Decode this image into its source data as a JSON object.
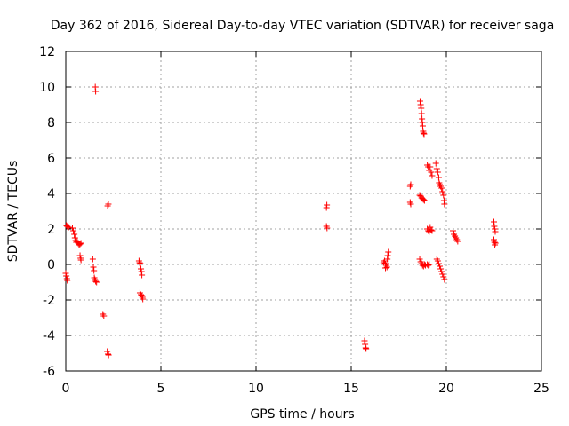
{
  "chart_data": {
    "type": "scatter",
    "title": "Day 362 of 2016, Sidereal Day-to-day VTEC variation (SDTVAR) for receiver saga",
    "xlabel": "GPS time / hours",
    "ylabel": "SDTVAR / TECUs",
    "xlim": [
      0,
      25
    ],
    "ylim": [
      -6,
      12
    ],
    "xticks": [
      0,
      5,
      10,
      15,
      20,
      25
    ],
    "yticks": [
      -6,
      -4,
      -2,
      0,
      2,
      4,
      6,
      8,
      10,
      12
    ],
    "grid": true,
    "marker": "+",
    "color": "#ff0000",
    "series": [
      {
        "name": "SDTVAR",
        "points": [
          [
            0.0,
            -0.5
          ],
          [
            0.03,
            -0.65
          ],
          [
            0.06,
            -0.8
          ],
          [
            0.08,
            -0.9
          ],
          [
            0.03,
            2.2
          ],
          [
            0.08,
            2.15
          ],
          [
            0.15,
            2.1
          ],
          [
            0.35,
            2.05
          ],
          [
            0.4,
            1.9
          ],
          [
            0.45,
            1.7
          ],
          [
            0.48,
            1.5
          ],
          [
            0.52,
            1.35
          ],
          [
            0.55,
            1.25
          ],
          [
            0.6,
            1.3
          ],
          [
            0.65,
            1.2
          ],
          [
            0.7,
            1.1
          ],
          [
            0.75,
            1.15
          ],
          [
            0.8,
            1.2
          ],
          [
            0.75,
            0.5
          ],
          [
            0.78,
            0.35
          ],
          [
            0.8,
            0.25
          ],
          [
            1.42,
            0.3
          ],
          [
            1.45,
            -0.15
          ],
          [
            1.48,
            -0.35
          ],
          [
            1.5,
            -0.75
          ],
          [
            1.53,
            -0.85
          ],
          [
            1.57,
            -0.95
          ],
          [
            1.62,
            -1.0
          ],
          [
            1.55,
            10.0
          ],
          [
            1.57,
            9.75
          ],
          [
            1.95,
            -2.8
          ],
          [
            2.0,
            -2.9
          ],
          [
            2.18,
            -4.9
          ],
          [
            2.22,
            -5.05
          ],
          [
            2.25,
            -5.1
          ],
          [
            2.2,
            3.3
          ],
          [
            2.24,
            3.4
          ],
          [
            3.85,
            0.2
          ],
          [
            3.88,
            0.1
          ],
          [
            3.92,
            0.05
          ],
          [
            3.95,
            -0.25
          ],
          [
            3.98,
            -0.4
          ],
          [
            4.0,
            -0.6
          ],
          [
            3.9,
            -1.6
          ],
          [
            3.95,
            -1.7
          ],
          [
            4.0,
            -1.75
          ],
          [
            4.03,
            -1.85
          ],
          [
            4.05,
            -1.95
          ],
          [
            13.7,
            3.2
          ],
          [
            13.72,
            3.35
          ],
          [
            13.7,
            2.15
          ],
          [
            13.73,
            2.05
          ],
          [
            15.7,
            -4.3
          ],
          [
            15.73,
            -4.5
          ],
          [
            15.76,
            -4.7
          ],
          [
            15.78,
            -4.75
          ],
          [
            16.7,
            0.1
          ],
          [
            16.75,
            0.2
          ],
          [
            16.8,
            0.05
          ],
          [
            16.85,
            -0.05
          ],
          [
            16.88,
            -0.15
          ],
          [
            16.9,
            0.3
          ],
          [
            16.92,
            0.5
          ],
          [
            16.95,
            0.7
          ],
          [
            16.8,
            -0.2
          ],
          [
            18.1,
            4.4
          ],
          [
            18.13,
            4.5
          ],
          [
            18.1,
            3.5
          ],
          [
            18.13,
            3.4
          ],
          [
            18.6,
            3.9
          ],
          [
            18.65,
            3.85
          ],
          [
            18.7,
            3.75
          ],
          [
            18.75,
            3.7
          ],
          [
            18.8,
            3.65
          ],
          [
            18.85,
            3.6
          ],
          [
            18.62,
            9.2
          ],
          [
            18.65,
            9.0
          ],
          [
            18.68,
            8.8
          ],
          [
            18.7,
            8.5
          ],
          [
            18.72,
            8.2
          ],
          [
            18.74,
            8.0
          ],
          [
            18.76,
            7.8
          ],
          [
            18.78,
            7.5
          ],
          [
            18.8,
            7.4
          ],
          [
            18.83,
            7.35
          ],
          [
            18.6,
            0.3
          ],
          [
            18.65,
            0.15
          ],
          [
            18.7,
            0.05
          ],
          [
            18.75,
            -0.05
          ],
          [
            18.8,
            -0.1
          ],
          [
            18.85,
            0.0
          ],
          [
            18.9,
            -0.05
          ],
          [
            19.0,
            0.0
          ],
          [
            19.05,
            -0.05
          ],
          [
            19.1,
            0.0
          ],
          [
            19.0,
            5.6
          ],
          [
            19.05,
            5.5
          ],
          [
            19.1,
            5.3
          ],
          [
            19.15,
            5.5
          ],
          [
            19.2,
            5.2
          ],
          [
            19.25,
            5.0
          ],
          [
            19.0,
            2.0
          ],
          [
            19.05,
            1.9
          ],
          [
            19.1,
            1.85
          ],
          [
            19.15,
            2.1
          ],
          [
            19.2,
            1.95
          ],
          [
            19.25,
            1.9
          ],
          [
            19.45,
            5.7
          ],
          [
            19.5,
            5.4
          ],
          [
            19.55,
            5.2
          ],
          [
            19.6,
            4.9
          ],
          [
            19.62,
            4.6
          ],
          [
            19.65,
            4.5
          ],
          [
            19.7,
            4.4
          ],
          [
            19.75,
            4.3
          ],
          [
            19.8,
            4.1
          ],
          [
            19.85,
            3.9
          ],
          [
            19.88,
            3.6
          ],
          [
            19.9,
            3.4
          ],
          [
            19.5,
            0.3
          ],
          [
            19.55,
            0.2
          ],
          [
            19.6,
            0.05
          ],
          [
            19.65,
            -0.1
          ],
          [
            19.7,
            -0.25
          ],
          [
            19.75,
            -0.4
          ],
          [
            19.8,
            -0.55
          ],
          [
            19.85,
            -0.7
          ],
          [
            19.9,
            -0.85
          ],
          [
            20.35,
            1.9
          ],
          [
            20.4,
            1.7
          ],
          [
            20.45,
            1.6
          ],
          [
            20.5,
            1.5
          ],
          [
            20.55,
            1.4
          ],
          [
            20.6,
            1.3
          ],
          [
            22.5,
            2.4
          ],
          [
            22.52,
            2.15
          ],
          [
            22.55,
            2.0
          ],
          [
            22.57,
            1.85
          ],
          [
            22.5,
            1.4
          ],
          [
            22.53,
            1.25
          ],
          [
            22.55,
            1.1
          ],
          [
            22.58,
            1.2
          ]
        ]
      }
    ]
  }
}
